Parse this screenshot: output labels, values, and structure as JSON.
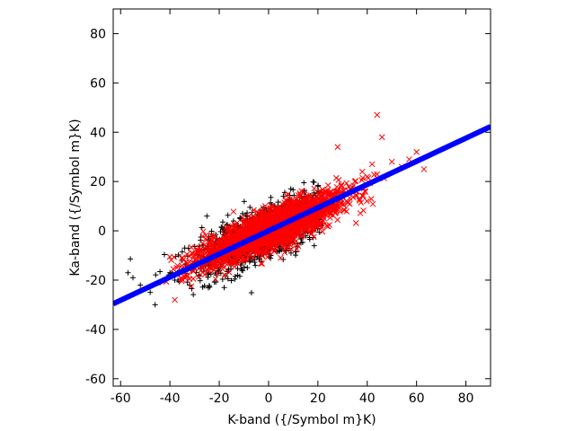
{
  "chart_data": {
    "type": "scatter",
    "xlabel": "K-band ({/Symbol m}K)",
    "ylabel": "Ka-band ({/Symbol m}K)",
    "xlim": [
      -63,
      90
    ],
    "ylim": [
      -63,
      90
    ],
    "xticks": [
      -60,
      -40,
      -20,
      0,
      20,
      40,
      60,
      80
    ],
    "yticks": [
      -60,
      -40,
      -20,
      0,
      20,
      40,
      60,
      80
    ],
    "grid": false,
    "legend": "none",
    "scatter_series": [
      {
        "marker": "plus",
        "color": "#000000",
        "approx_count": 1200,
        "x_center": -2,
        "x_spread": 14,
        "slope": 0.42,
        "residual_spread": 5.5,
        "x_range": [
          -58,
          22
        ],
        "sample_points": [
          [
            -57,
            -17
          ],
          [
            -55,
            -19
          ],
          [
            -52,
            -22
          ],
          [
            -48,
            -25
          ],
          [
            -46,
            -30
          ],
          [
            -44,
            -21
          ],
          [
            -40,
            -17
          ],
          [
            -38,
            -20
          ],
          [
            -35,
            -12
          ],
          [
            -32,
            -22
          ],
          [
            -30,
            -14
          ],
          [
            -25,
            6
          ],
          [
            -22,
            -9
          ],
          [
            -20,
            -5
          ],
          [
            -18,
            -23
          ],
          [
            -15,
            -8
          ],
          [
            -10,
            -4
          ],
          [
            -6,
            4
          ],
          [
            -4,
            -2
          ],
          [
            0,
            1
          ],
          [
            4,
            7
          ],
          [
            6,
            14
          ],
          [
            9,
            17
          ],
          [
            12,
            11
          ],
          [
            15,
            14
          ],
          [
            20,
            18
          ]
        ]
      },
      {
        "marker": "x",
        "color": "#ff0000",
        "approx_count": 2500,
        "x_center": 2,
        "x_spread": 14,
        "slope": 0.42,
        "residual_spread": 3.8,
        "x_range": [
          -42,
          64
        ],
        "sample_points": [
          [
            -38,
            -28
          ],
          [
            -33,
            -18
          ],
          [
            -25,
            -12
          ],
          [
            -20,
            -10
          ],
          [
            -15,
            -6
          ],
          [
            -10,
            -4
          ],
          [
            -5,
            -2
          ],
          [
            0,
            0
          ],
          [
            5,
            2
          ],
          [
            10,
            4
          ],
          [
            15,
            6
          ],
          [
            20,
            8
          ],
          [
            25,
            10
          ],
          [
            28,
            34
          ],
          [
            30,
            14
          ],
          [
            33,
            17
          ],
          [
            35,
            20
          ],
          [
            38,
            24
          ],
          [
            40,
            22
          ],
          [
            42,
            27
          ],
          [
            44,
            47
          ],
          [
            46,
            38
          ],
          [
            50,
            28
          ],
          [
            54,
            26
          ],
          [
            57,
            29
          ],
          [
            60,
            32
          ],
          [
            63,
            25
          ]
        ]
      }
    ],
    "lines": [
      {
        "label": "",
        "color": "#0000ff",
        "slope": 0.47,
        "intercept": 0,
        "x_range": [
          -63,
          90
        ]
      }
    ]
  }
}
